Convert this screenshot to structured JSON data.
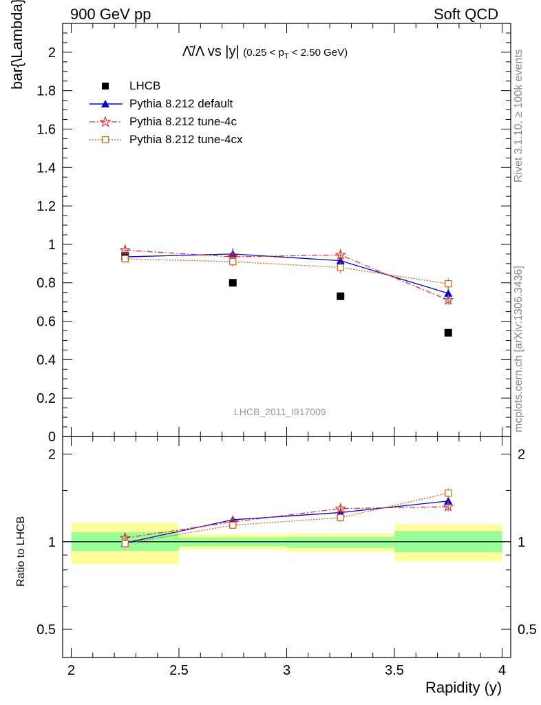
{
  "header": {
    "left": "900 GeV pp",
    "right": "Soft QCD"
  },
  "side_labels": {
    "rivet": "Rivet 3.1.10, ≥ 100k events",
    "source": "mcplots.cern.ch [arXiv:1306.3436]"
  },
  "watermark": "LHCB_2011_I917009",
  "chart_data": {
    "type": "scatter",
    "title": "Λ̄/Λ vs |y|",
    "title_suffix": "(0.25 < p",
    "title_sub": "T",
    "title_suffix2": " < 2.50 GeV)",
    "ylabel": "bar{\\Lambda}/\\Lambda",
    "xlabel": "Rapidity (y)",
    "ratio_ylabel": "Ratio to LHCB",
    "xlim": [
      2,
      4
    ],
    "ylim": [
      0,
      2.15
    ],
    "ratio_ylim": [
      0.4,
      2.3
    ],
    "ratio_scale": "log",
    "x_ticks": [
      "2",
      "2.5",
      "3",
      "3.5",
      "4"
    ],
    "y_ticks": [
      "0",
      "0.2",
      "0.4",
      "0.6",
      "0.8",
      "1",
      "1.2",
      "1.4",
      "1.6",
      "1.8",
      "2"
    ],
    "ratio_ticks": [
      "0.5",
      "1",
      "2"
    ],
    "x": [
      2.25,
      2.75,
      3.25,
      3.75
    ],
    "bin_edges": [
      2.0,
      2.5,
      3.0,
      3.5,
      4.0
    ],
    "series": [
      {
        "name": "LHCB",
        "color": "#000000",
        "marker": "square",
        "line": "none",
        "values": [
          0.94,
          0.8,
          0.73,
          0.54
        ],
        "band_inner": [
          [
            0.93,
            1.08
          ],
          [
            0.965,
            1.035
          ],
          [
            0.955,
            1.04
          ],
          [
            0.92,
            1.09
          ]
        ],
        "band_outer": [
          [
            0.84,
            1.16
          ],
          [
            0.94,
            1.06
          ],
          [
            0.925,
            1.07
          ],
          [
            0.86,
            1.15
          ]
        ]
      },
      {
        "name": "Pythia 8.212 default",
        "color": "#0000cc",
        "marker": "triangle",
        "line": "solid",
        "values": [
          0.935,
          0.95,
          0.915,
          0.745
        ],
        "errors": [
          0.02,
          0.03,
          0.03,
          0.025
        ],
        "ratio": [
          0.99,
          1.19,
          1.26,
          1.38
        ]
      },
      {
        "name": "Pythia 8.212 tune-4c",
        "color": "#dd3333",
        "marker": "star",
        "line": "dashdot",
        "values": [
          0.97,
          0.935,
          0.945,
          0.71
        ],
        "errors": [
          0.03,
          0.025,
          0.03,
          0.025
        ],
        "ratio": [
          1.03,
          1.17,
          1.3,
          1.32
        ]
      },
      {
        "name": "Pythia 8.212 tune-4cx",
        "color": "#cc6622",
        "marker": "open-square",
        "line": "dotted",
        "values": [
          0.925,
          0.91,
          0.88,
          0.795
        ],
        "errors": [
          0.02,
          0.025,
          0.03,
          0.03
        ],
        "ratio": [
          0.985,
          1.14,
          1.21,
          1.47
        ]
      }
    ]
  }
}
